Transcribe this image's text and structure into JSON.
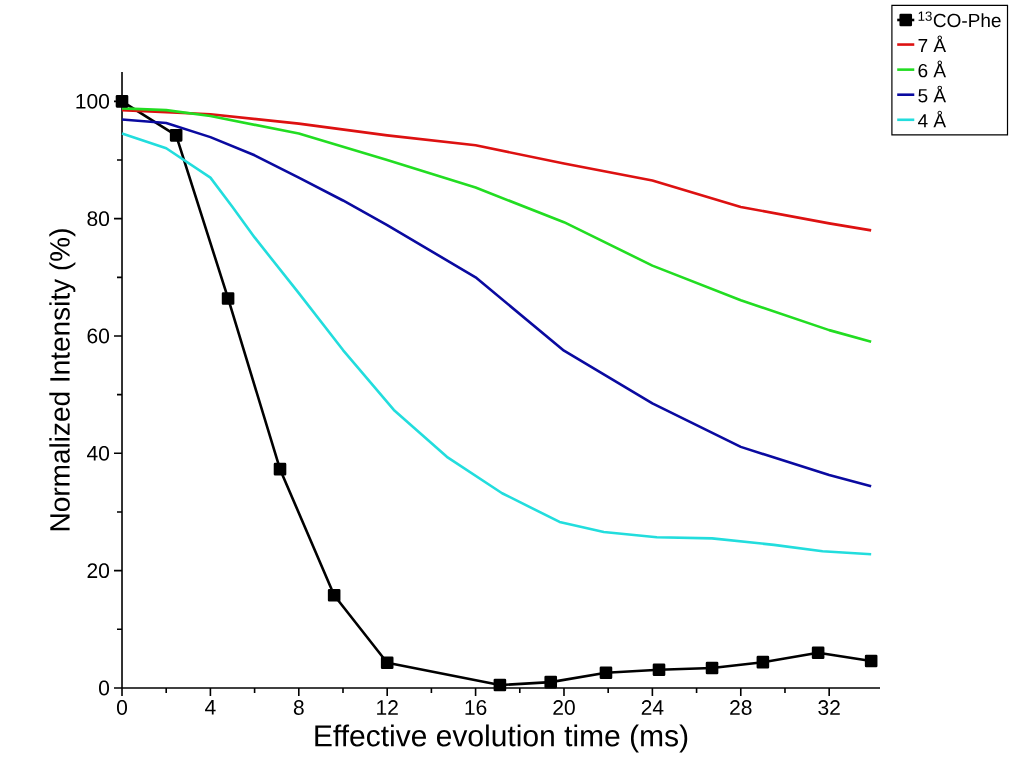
{
  "chart_data": {
    "type": "line",
    "xlabel": "Effective evolution time (ms)",
    "ylabel": "Normalized Intensity (%)",
    "xlim": [
      0,
      34.3
    ],
    "ylim": [
      0,
      105
    ],
    "xticks": [
      0,
      4,
      8,
      12,
      16,
      20,
      24,
      28,
      32
    ],
    "yticks": [
      0,
      20,
      40,
      60,
      80,
      100
    ],
    "legend": "top right",
    "line_style": "solid",
    "series": [
      {
        "name": "$^{13}$CO-Phe",
        "color": "#000000",
        "marker": "square",
        "x": [
          0,
          2.45,
          4.8,
          7.15,
          9.6,
          12.0,
          17.1,
          19.4,
          21.9,
          24.3,
          26.7,
          29.0,
          31.5,
          33.9
        ],
        "values": [
          100,
          94.2,
          66.4,
          37.3,
          15.8,
          4.3,
          0.5,
          1.0,
          2.6,
          3.1,
          3.4,
          4.4,
          6.0,
          4.6
        ]
      },
      {
        "name": "7 Å",
        "color": "#dd1111",
        "marker": "none",
        "x": [
          0,
          4,
          8,
          12,
          16,
          20,
          24,
          28,
          32,
          33.9
        ],
        "values": [
          98.5,
          97.8,
          96.2,
          94.2,
          92.5,
          89.4,
          86.5,
          82,
          79.2,
          78.0
        ]
      },
      {
        "name": "6 Å",
        "color": "#22dd22",
        "marker": "none",
        "x": [
          0,
          2,
          4,
          8,
          12,
          16,
          20,
          24,
          28,
          32,
          33.9
        ],
        "values": [
          98.8,
          98.5,
          97.5,
          94.5,
          90,
          85.3,
          79.4,
          72,
          66.1,
          61,
          59
        ]
      },
      {
        "name": "5 Å",
        "color": "#0a0aa0",
        "marker": "none",
        "x": [
          0,
          2,
          4,
          6,
          8,
          10,
          12,
          16,
          20,
          24,
          28,
          32,
          33.9
        ],
        "values": [
          96.9,
          96.3,
          93.9,
          90.8,
          87,
          83.1,
          78.9,
          70,
          57.5,
          48.5,
          41.1,
          36.3,
          34.4
        ]
      },
      {
        "name": "4 Å",
        "color": "#22dddd",
        "marker": "none",
        "x": [
          0,
          2,
          4,
          5,
          6,
          8,
          10,
          12.3,
          14.7,
          17.2,
          19.8,
          21.8,
          24.2,
          26.7,
          29.5,
          31.7,
          33.9
        ],
        "values": [
          94.5,
          92,
          87,
          82,
          76.8,
          67.3,
          57.6,
          47.4,
          39.4,
          33.2,
          28.3,
          26.6,
          25.7,
          25.5,
          24.4,
          23.3,
          22.8
        ]
      }
    ]
  }
}
